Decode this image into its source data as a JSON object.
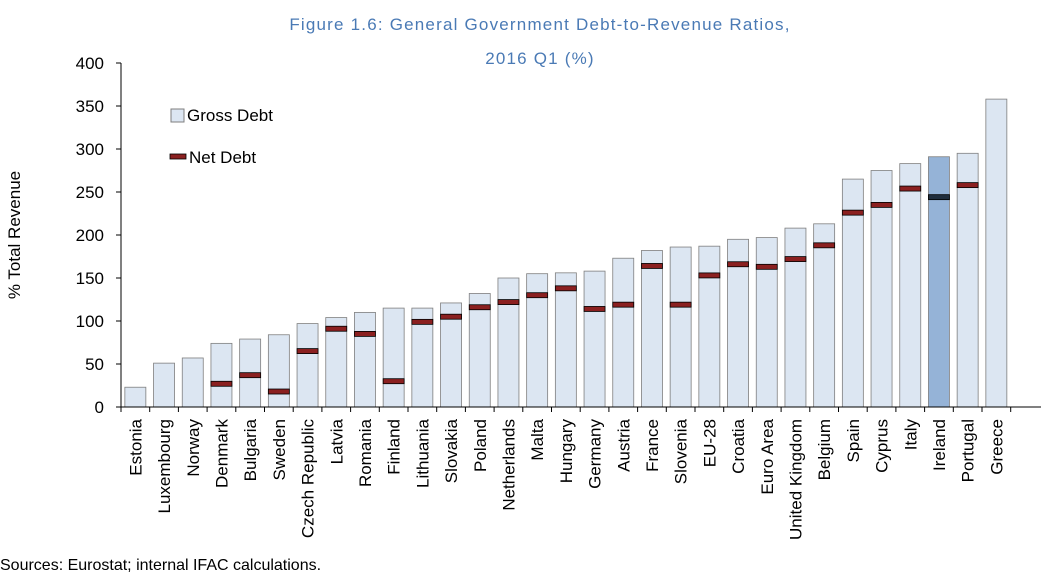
{
  "chart_data": {
    "type": "bar",
    "title_line1": "Figure 1.6: General Government Debt-to-Revenue Ratios,",
    "title_line2": "2016 Q1 (%)",
    "ylabel": "% Total Revenue",
    "xlabel": "",
    "ylim": [
      0,
      400
    ],
    "yticks": [
      0,
      50,
      100,
      150,
      200,
      250,
      300,
      350,
      400
    ],
    "grid": false,
    "legend_position": "top-left",
    "categories": [
      "Estonia",
      "Luxembourg",
      "Norway",
      "Denmark",
      "Bulgaria",
      "Sweden",
      "Czech Republic",
      "Latvia",
      "Romania",
      "Finland",
      "Lithuania",
      "Slovakia",
      "Poland",
      "Netherlands",
      "Malta",
      "Hungary",
      "Germany",
      "Austria",
      "France",
      "Slovenia",
      "EU-28",
      "Croatia",
      "Euro Area",
      "United Kingdom",
      "Belgium",
      "Spain",
      "Cyprus",
      "Italy",
      "Ireland",
      "Portugal",
      "Greece"
    ],
    "series": [
      {
        "name": "Gross Debt",
        "type": "bar",
        "color": "#dce6f2",
        "highlight_color": "#95b3d7",
        "highlight_category": "Ireland",
        "values": [
          23,
          51,
          57,
          74,
          79,
          84,
          97,
          104,
          110,
          115,
          115,
          121,
          132,
          150,
          155,
          156,
          158,
          173,
          182,
          186,
          187,
          195,
          197,
          208,
          213,
          265,
          275,
          283,
          291,
          295,
          358
        ]
      },
      {
        "name": "Net Debt",
        "type": "marker",
        "color": "#8b2020",
        "highlight_color": "#1f2d3d",
        "highlight_category": "Ireland",
        "values": [
          null,
          null,
          null,
          27,
          37,
          18,
          65,
          91,
          85,
          30,
          99,
          105,
          116,
          122,
          130,
          138,
          114,
          119,
          164,
          119,
          153,
          166,
          163,
          172,
          188,
          226,
          235,
          254,
          244,
          258,
          null
        ]
      }
    ]
  },
  "source": "Sources: Eurostat; internal IFAC calculations."
}
